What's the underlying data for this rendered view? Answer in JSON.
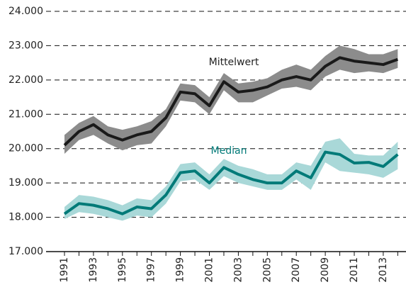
{
  "chart_data": {
    "type": "line",
    "categories": [
      "1991",
      null,
      "1993",
      null,
      "1995",
      null,
      "1997",
      null,
      "1999",
      null,
      "2001",
      null,
      "2003",
      null,
      "2005",
      null,
      "2007",
      null,
      "2009",
      null,
      "2011",
      null,
      "2013",
      null
    ],
    "ylim": [
      17000,
      24000
    ],
    "yticks": [
      {
        "value": 17000,
        "label": "17.000"
      },
      {
        "value": 18000,
        "label": "18.000"
      },
      {
        "value": 19000,
        "label": "19.000"
      },
      {
        "value": 20000,
        "label": "20.000"
      },
      {
        "value": 21000,
        "label": "21.000"
      },
      {
        "value": 22000,
        "label": "22.000"
      },
      {
        "value": 23000,
        "label": "23.000"
      },
      {
        "value": 24000,
        "label": "24.000"
      }
    ],
    "grid": true,
    "series": [
      {
        "name": "Mittelwert",
        "color": "#1a1a1a",
        "band_color": "#8c8c8c",
        "values": [
          20100,
          20500,
          20700,
          20400,
          20250,
          20400,
          20500,
          20900,
          21650,
          21600,
          21250,
          21950,
          21650,
          21700,
          21800,
          22000,
          22100,
          22000,
          22400,
          22650,
          22550,
          22500,
          22450,
          22600
        ],
        "upper": [
          20400,
          20750,
          20950,
          20650,
          20550,
          20650,
          20800,
          21150,
          21900,
          21850,
          21500,
          22200,
          21900,
          21950,
          22050,
          22300,
          22450,
          22300,
          22700,
          23000,
          22900,
          22750,
          22750,
          22900
        ],
        "lower": [
          19850,
          20250,
          20400,
          20150,
          19950,
          20100,
          20150,
          20650,
          21400,
          21350,
          21000,
          21700,
          21350,
          21350,
          21550,
          21750,
          21800,
          21700,
          22100,
          22300,
          22200,
          22250,
          22200,
          22350
        ]
      },
      {
        "name": "Median",
        "color": "#007a78",
        "band_color": "#a9d8d8",
        "values": [
          18100,
          18400,
          18350,
          18250,
          18100,
          18300,
          18250,
          18650,
          19300,
          19350,
          19000,
          19450,
          19250,
          19100,
          19000,
          19000,
          19350,
          19150,
          19900,
          19830,
          19580,
          19600,
          19480,
          19830
        ],
        "upper": [
          18300,
          18650,
          18600,
          18500,
          18350,
          18550,
          18500,
          18900,
          19550,
          19600,
          19250,
          19700,
          19500,
          19400,
          19250,
          19250,
          19600,
          19500,
          20200,
          20300,
          19850,
          19800,
          19800,
          20200
        ],
        "lower": [
          17950,
          18150,
          18100,
          18000,
          17900,
          18050,
          18000,
          18400,
          19050,
          19100,
          18800,
          19200,
          19000,
          18900,
          18800,
          18800,
          19100,
          18800,
          19600,
          19350,
          19300,
          19250,
          19150,
          19400
        ]
      }
    ]
  }
}
